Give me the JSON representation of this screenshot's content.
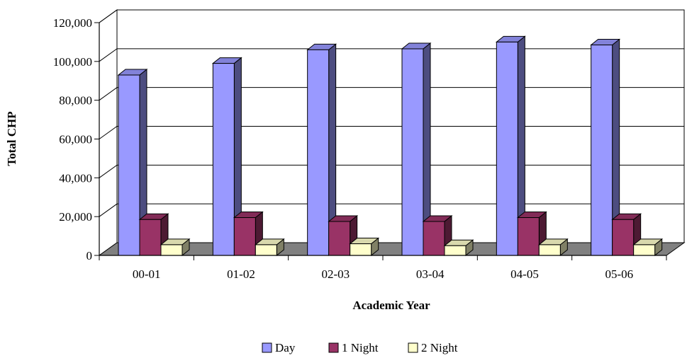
{
  "chart_data": {
    "type": "bar",
    "style": "3d-clustered-column",
    "categories": [
      "00-01",
      "01-02",
      "02-03",
      "03-04",
      "04-05",
      "05-06"
    ],
    "series": [
      {
        "name": "Day",
        "color": "#9999ff",
        "values": [
          93000,
          99000,
          106000,
          106500,
          110000,
          108500
        ]
      },
      {
        "name": "1 Night",
        "color": "#993366",
        "values": [
          18500,
          19500,
          17500,
          17500,
          19500,
          18500
        ]
      },
      {
        "name": "2 Night",
        "color": "#ffffcc",
        "values": [
          5500,
          5500,
          6000,
          5000,
          5500,
          5500
        ]
      }
    ],
    "ylim": [
      0,
      120000
    ],
    "yticks": [
      0,
      20000,
      40000,
      60000,
      80000,
      100000,
      120000
    ],
    "ytick_labels": [
      "0",
      "20,000",
      "40,000",
      "60,000",
      "80,000",
      "100,000",
      "120,000"
    ],
    "xlabel": "Academic Year",
    "ylabel": "Total CHP",
    "grid": true,
    "legend": "bottom"
  }
}
